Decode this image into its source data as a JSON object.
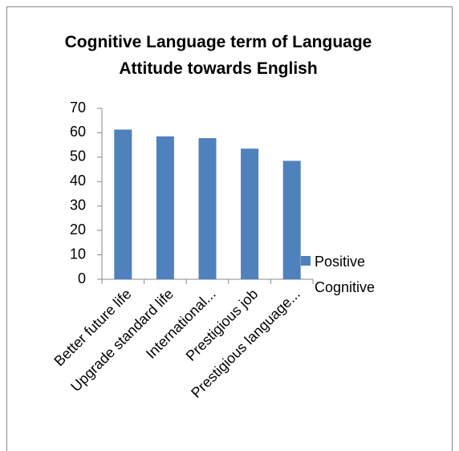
{
  "chart_data": {
    "type": "bar",
    "title": "Cognitive Language term of Language Attitude towards English",
    "categories": [
      "Better future life",
      "Upgrade standard life",
      "International...",
      "Prestigious job",
      "Prestigious language..."
    ],
    "series": [
      {
        "name": "Positive Cognitive",
        "color": "#4f81bd",
        "values": [
          61.3,
          58.5,
          57.8,
          53.5,
          48.5
        ]
      }
    ],
    "ylim": [
      0,
      70
    ],
    "yticks": [
      0,
      10,
      20,
      30,
      40,
      50,
      60,
      70
    ],
    "legend": "right"
  }
}
